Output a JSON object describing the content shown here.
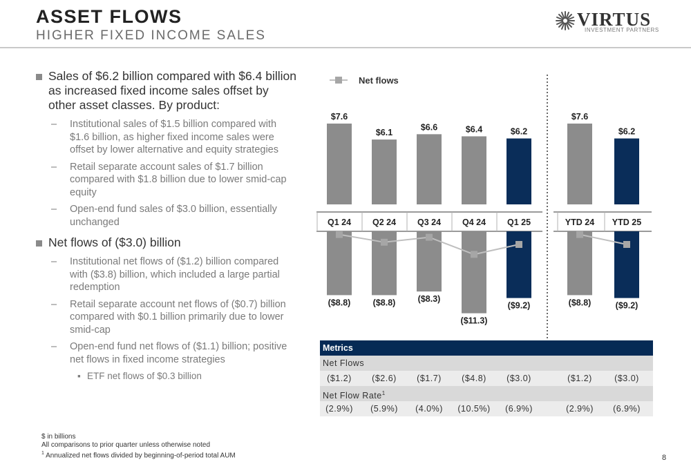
{
  "header": {
    "title": "ASSET FLOWS",
    "subtitle": "HIGHER FIXED INCOME SALES",
    "logo_name": "VIRTUS",
    "logo_tagline": "INVESTMENT PARTNERS"
  },
  "bullets": {
    "b1": "Sales of $6.2 billion compared with $6.4 billion as increased fixed income sales offset by other asset classes. By product:",
    "b1_1": "Institutional sales of $1.5 billion compared with $1.6 billion, as higher fixed income sales were offset by lower alternative and equity strategies",
    "b1_2": "Retail separate account sales of $1.7 billion compared with $1.8 billion due to lower smid-cap equity",
    "b1_3": "Open-end fund sales of $3.0 billion, essentially unchanged",
    "b2": "Net flows of ($3.0) billion",
    "b2_1": "Institutional net flows of ($1.2) billion compared with ($3.8) billion, which included a large partial redemption",
    "b2_2": "Retail separate account net flows of ($0.7) billion compared with $0.1 billion primarily due to lower smid-cap",
    "b2_3": "Open-end fund net flows of ($1.1) billion; positive net flows in fixed income strategies",
    "b2_3_1": "ETF net flows of $0.3 billion",
    "dash": "–",
    "dot": "▪"
  },
  "chart_data": {
    "type": "bar",
    "legend": "Net flows",
    "categories": [
      "Q1 24",
      "Q2 24",
      "Q3 24",
      "Q4 24",
      "Q1 25",
      "YTD 24",
      "YTD 25"
    ],
    "sales": [
      7.6,
      6.1,
      6.6,
      6.4,
      6.2,
      7.6,
      6.2
    ],
    "sales_labels": [
      "$7.6",
      "$6.1",
      "$6.6",
      "$6.4",
      "$6.2",
      "$7.6",
      "$6.2"
    ],
    "redemptions": [
      8.8,
      8.8,
      8.3,
      11.3,
      9.2,
      8.8,
      9.2
    ],
    "redemption_labels": [
      "($8.8)",
      "($8.8)",
      "($8.3)",
      "($11.3)",
      "($9.2)",
      "($8.8)",
      "($9.2)"
    ],
    "net_flows": [
      -1.2,
      -2.6,
      -1.7,
      -4.8,
      -3.0,
      -1.2,
      -3.0
    ],
    "highlight": [
      false,
      false,
      false,
      false,
      true,
      false,
      true
    ],
    "colors": {
      "gray": "#8c8c8c",
      "navy": "#0a2d59",
      "line": "#bfbfbf",
      "marker": "#a6a6a6"
    }
  },
  "metrics": {
    "header": "Metrics",
    "net_flows_label": "Net Flows",
    "net_flows": [
      "($1.2)",
      "($2.6)",
      "($1.7)",
      "($4.8)",
      "($3.0)",
      "($1.2)",
      "($3.0)"
    ],
    "rate_label": "Net Flow Rate",
    "rate_sup": "1",
    "rates": [
      "(2.9%)",
      "(5.9%)",
      "(4.0%)",
      "(10.5%)",
      "(6.9%)",
      "(2.9%)",
      "(6.9%)"
    ]
  },
  "footnotes": {
    "f1": "$ in billions",
    "f2": "All comparisons to prior quarter unless otherwise noted",
    "f3_sup": "1",
    "f3": "Annualized net flows divided by beginning-of-period total AUM"
  },
  "page_number": "8"
}
